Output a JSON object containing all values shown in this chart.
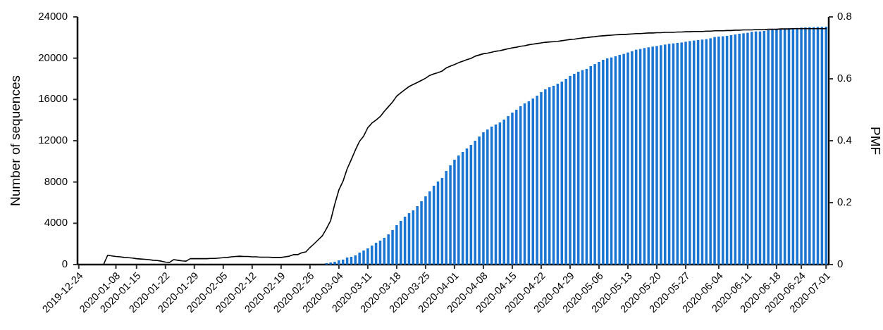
{
  "chart_data": {
    "type": "bar",
    "ylabel": "Number of sequences",
    "y2label": "PMF",
    "categories": [
      "2019-12-24",
      null,
      null,
      null,
      null,
      null,
      null,
      null,
      null,
      "2020-01-08",
      null,
      null,
      null,
      null,
      "2020-01-15",
      null,
      null,
      null,
      null,
      null,
      null,
      "2020-01-22",
      null,
      null,
      null,
      null,
      null,
      null,
      "2020-01-29",
      null,
      null,
      null,
      null,
      null,
      null,
      "2020-02-05",
      null,
      null,
      null,
      null,
      null,
      null,
      "2020-02-12",
      null,
      null,
      null,
      null,
      null,
      null,
      "2020-02-19",
      null,
      null,
      null,
      null,
      null,
      null,
      "2020-02-26",
      null,
      null,
      null,
      null,
      null,
      null,
      "2020-03-04",
      null,
      null,
      null,
      null,
      null,
      null,
      "2020-03-11",
      null,
      null,
      null,
      null,
      null,
      null,
      "2020-03-18",
      null,
      null,
      null,
      null,
      null,
      null,
      "2020-03-25",
      null,
      null,
      null,
      null,
      null,
      null,
      "2020-04-01",
      null,
      null,
      null,
      null,
      null,
      null,
      "2020-04-08",
      null,
      null,
      null,
      null,
      null,
      null,
      "2020-04-15",
      null,
      null,
      null,
      null,
      null,
      null,
      "2020-04-22",
      null,
      null,
      null,
      null,
      null,
      null,
      "2020-04-29",
      null,
      null,
      null,
      null,
      null,
      null,
      "2020-05-06",
      null,
      null,
      null,
      null,
      null,
      null,
      "2020-05-13",
      null,
      null,
      null,
      null,
      null,
      null,
      "2020-05-20",
      null,
      null,
      null,
      null,
      null,
      null,
      "2020-05-27",
      null,
      null,
      null,
      null,
      null,
      null,
      null,
      "2020-06-04",
      null,
      null,
      null,
      null,
      null,
      null,
      "2020-06-11",
      null,
      null,
      null,
      null,
      null,
      null,
      "2020-06-18",
      null,
      null,
      null,
      null,
      null,
      "2020-06-24",
      null,
      null,
      null,
      null,
      null,
      "2020-07-01"
    ],
    "series": [
      {
        "color": "#1a75d2",
        "values": [
          null,
          null,
          null,
          null,
          null,
          null,
          null,
          null,
          null,
          null,
          null,
          null,
          null,
          null,
          null,
          null,
          null,
          null,
          null,
          null,
          null,
          null,
          null,
          null,
          null,
          null,
          null,
          null,
          null,
          null,
          null,
          null,
          null,
          null,
          null,
          null,
          null,
          null,
          null,
          null,
          null,
          null,
          null,
          null,
          null,
          null,
          null,
          null,
          null,
          null,
          null,
          null,
          null,
          null,
          null,
          null,
          null,
          null,
          null,
          null,
          140,
          200,
          270,
          410,
          480,
          680,
          750,
          890,
          1160,
          1360,
          1570,
          1840,
          2110,
          2320,
          2590,
          2930,
          3340,
          3820,
          4230,
          4640,
          4980,
          5250,
          5660,
          6140,
          6610,
          7090,
          7640,
          8050,
          8390,
          9070,
          9620,
          10160,
          10570,
          10910,
          11250,
          11590,
          12000,
          12410,
          12820,
          13090,
          13370,
          13570,
          13770,
          14050,
          14390,
          14730,
          15000,
          15340,
          15620,
          15820,
          16090,
          16370,
          16710,
          16980,
          17180,
          17320,
          17520,
          17730,
          18000,
          18280,
          18480,
          18680,
          18840,
          18960,
          19230,
          19430,
          19640,
          19840,
          19980,
          20070,
          20180,
          20320,
          20410,
          20550,
          20680,
          20820,
          20890,
          20980,
          21050,
          21120,
          21180,
          21250,
          21320,
          21390,
          21430,
          21480,
          21520,
          21590,
          21660,
          21710,
          21750,
          21800,
          21840,
          21930,
          22050,
          22090,
          22120,
          22160,
          22230,
          22300,
          22370,
          22410,
          22460,
          22550,
          22590,
          22590,
          22640,
          22710,
          22750,
          22780,
          22820,
          22870,
          22890,
          22910,
          22930,
          22960,
          22980,
          23000,
          23000,
          23030,
          23030,
          23050
        ]
      },
      {
        "type": "line",
        "color": "#000000",
        "axis": "y2",
        "values": [
          null,
          null,
          null,
          null,
          null,
          null,
          0,
          0.03,
          0.028,
          0.026,
          0.025,
          0.023,
          0.022,
          0.021,
          0.019,
          0.018,
          0.017,
          0.016,
          0.014,
          0.013,
          0.011,
          0.008,
          0.007,
          0.016,
          0.014,
          0.012,
          0.011,
          0.019,
          0.019,
          0.019,
          0.019,
          0.019,
          0.02,
          0.02,
          0.021,
          0.022,
          0.023,
          0.025,
          0.026,
          0.027,
          0.026,
          0.026,
          0.025,
          0.025,
          0.024,
          0.024,
          0.024,
          0.023,
          0.023,
          0.023,
          0.025,
          0.027,
          0.032,
          0.032,
          0.038,
          0.041,
          0.055,
          0.067,
          0.08,
          0.093,
          0.116,
          0.142,
          0.195,
          0.241,
          0.269,
          0.309,
          0.339,
          0.37,
          0.398,
          0.415,
          0.442,
          0.457,
          0.467,
          0.478,
          0.495,
          0.51,
          0.525,
          0.544,
          0.555,
          0.565,
          0.575,
          0.582,
          0.588,
          0.595,
          0.602,
          0.611,
          0.616,
          0.62,
          0.625,
          0.635,
          0.641,
          0.646,
          0.652,
          0.657,
          0.662,
          0.666,
          0.673,
          0.677,
          0.681,
          0.683,
          0.686,
          0.689,
          0.691,
          0.694,
          0.697,
          0.7,
          0.702,
          0.705,
          0.707,
          0.71,
          0.712,
          0.714,
          0.716,
          0.718,
          0.719,
          0.72,
          0.721,
          0.723,
          0.725,
          0.727,
          0.728,
          0.73,
          0.732,
          0.733,
          0.735,
          0.736,
          0.738,
          0.739,
          0.74,
          0.741,
          0.742,
          0.743,
          0.743,
          0.744,
          0.745,
          0.746,
          0.746,
          0.747,
          0.748,
          0.748,
          0.749,
          0.749,
          0.75,
          0.75,
          0.75,
          0.751,
          0.751,
          0.752,
          0.752,
          0.753,
          0.753,
          0.753,
          0.754,
          0.754,
          0.755,
          0.755,
          0.755,
          0.756,
          0.756,
          0.757,
          0.757,
          0.758,
          0.758,
          0.758,
          0.759,
          0.759,
          0.759,
          0.76,
          0.76,
          0.76,
          0.761,
          0.761,
          0.761,
          0.762,
          0.762,
          0.762,
          0.762,
          0.762,
          0.762,
          0.762,
          0.762,
          0.762
        ]
      }
    ],
    "ylim": [
      0,
      24000
    ],
    "yticks": [
      0,
      4000,
      8000,
      12000,
      16000,
      20000,
      24000
    ],
    "y2lim": [
      0,
      0.8
    ],
    "y2ticks": [
      0,
      0.2,
      0.4,
      0.6,
      0.8
    ]
  }
}
